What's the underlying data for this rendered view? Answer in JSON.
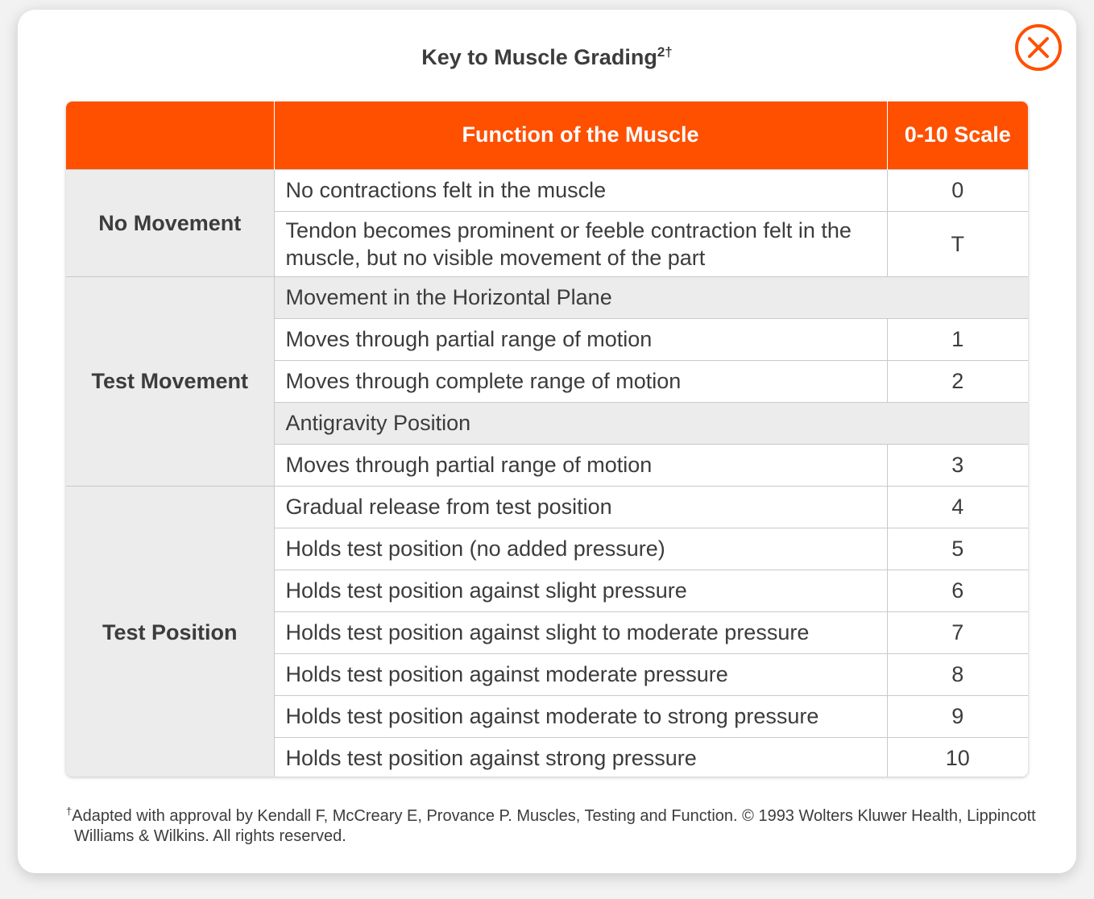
{
  "dialog": {
    "title": "Key to Muscle Grading",
    "title_sup": "2†",
    "close_icon": "close-circle-icon",
    "accent_color": "#ff5000"
  },
  "table": {
    "headers": [
      "",
      "Function of the Muscle",
      "0-10 Scale"
    ],
    "groups": {
      "no_movement": "No Movement",
      "test_movement": "Test Movement",
      "test_position": "Test Position"
    },
    "rows": [
      {
        "function": "No contractions felt in the muscle",
        "scale": "0"
      },
      {
        "function": "Tendon becomes prominent or feeble contraction felt in the muscle, but no visible movement of the part",
        "scale": "T"
      },
      {
        "function": "Movement in the Horizontal Plane",
        "scale": ""
      },
      {
        "function": "Moves through partial range of motion",
        "scale": "1"
      },
      {
        "function": "Moves through complete range of motion",
        "scale": "2"
      },
      {
        "function": "Antigravity Position",
        "scale": ""
      },
      {
        "function": "Moves through partial range of motion",
        "scale": "3"
      },
      {
        "function": "Gradual release from test position",
        "scale": "4"
      },
      {
        "function": "Holds test position (no added pressure)",
        "scale": "5"
      },
      {
        "function": "Holds test position against slight pressure",
        "scale": "6"
      },
      {
        "function": "Holds test position against slight to moderate pressure",
        "scale": "7"
      },
      {
        "function": "Holds test position against moderate pressure",
        "scale": "8"
      },
      {
        "function": "Holds test position against moderate to strong pressure",
        "scale": "9"
      },
      {
        "function": "Holds test position against strong pressure",
        "scale": "10"
      }
    ]
  },
  "footnote": {
    "marker": "†",
    "text": "Adapted with approval by Kendall F, McCreary E, Provance P. Muscles, Testing and Function. © 1993 Wolters Kluwer Health, Lippincott Williams & Wilkins. All rights reserved."
  }
}
